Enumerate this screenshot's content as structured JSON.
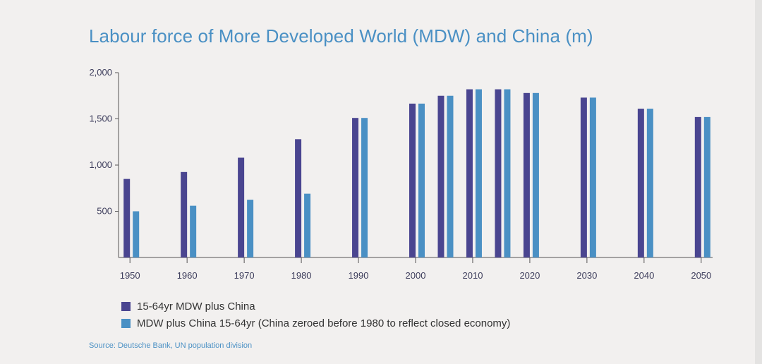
{
  "colors": {
    "series1": "#4a4590",
    "series2": "#4a90c4",
    "axis": "#555555",
    "title": "#4a90c4"
  },
  "chart_data": {
    "type": "bar",
    "title": "Labour force of More Developed World (MDW) and China (m)",
    "ylim": [
      0,
      2000
    ],
    "yticks": [
      500,
      1000,
      1500,
      2000
    ],
    "ytick_labels": [
      "500",
      "1,000",
      "1,500",
      "2,000"
    ],
    "xticks": [
      1950,
      1960,
      1970,
      1980,
      1990,
      2000,
      2010,
      2020,
      2030,
      2040,
      2050
    ],
    "xlim": [
      1948,
      2052
    ],
    "x": [
      1950,
      1960,
      1970,
      1980,
      1990,
      2000,
      2005,
      2010,
      2015,
      2020,
      2030,
      2040,
      2050
    ],
    "series": [
      {
        "name": "15-64yr MDW plus China",
        "values": [
          850,
          925,
          1080,
          1280,
          1510,
          1665,
          1750,
          1820,
          1820,
          1780,
          1730,
          1610,
          1520
        ]
      },
      {
        "name": "MDW plus China 15-64yr (China zeroed before 1980 to reflect closed economy)",
        "values": [
          500,
          560,
          625,
          690,
          1510,
          1665,
          1750,
          1820,
          1820,
          1780,
          1730,
          1610,
          1520
        ]
      }
    ],
    "grid": false,
    "legend_placement": "bottom-left"
  },
  "source": "Source: Deutsche Bank, UN population division"
}
